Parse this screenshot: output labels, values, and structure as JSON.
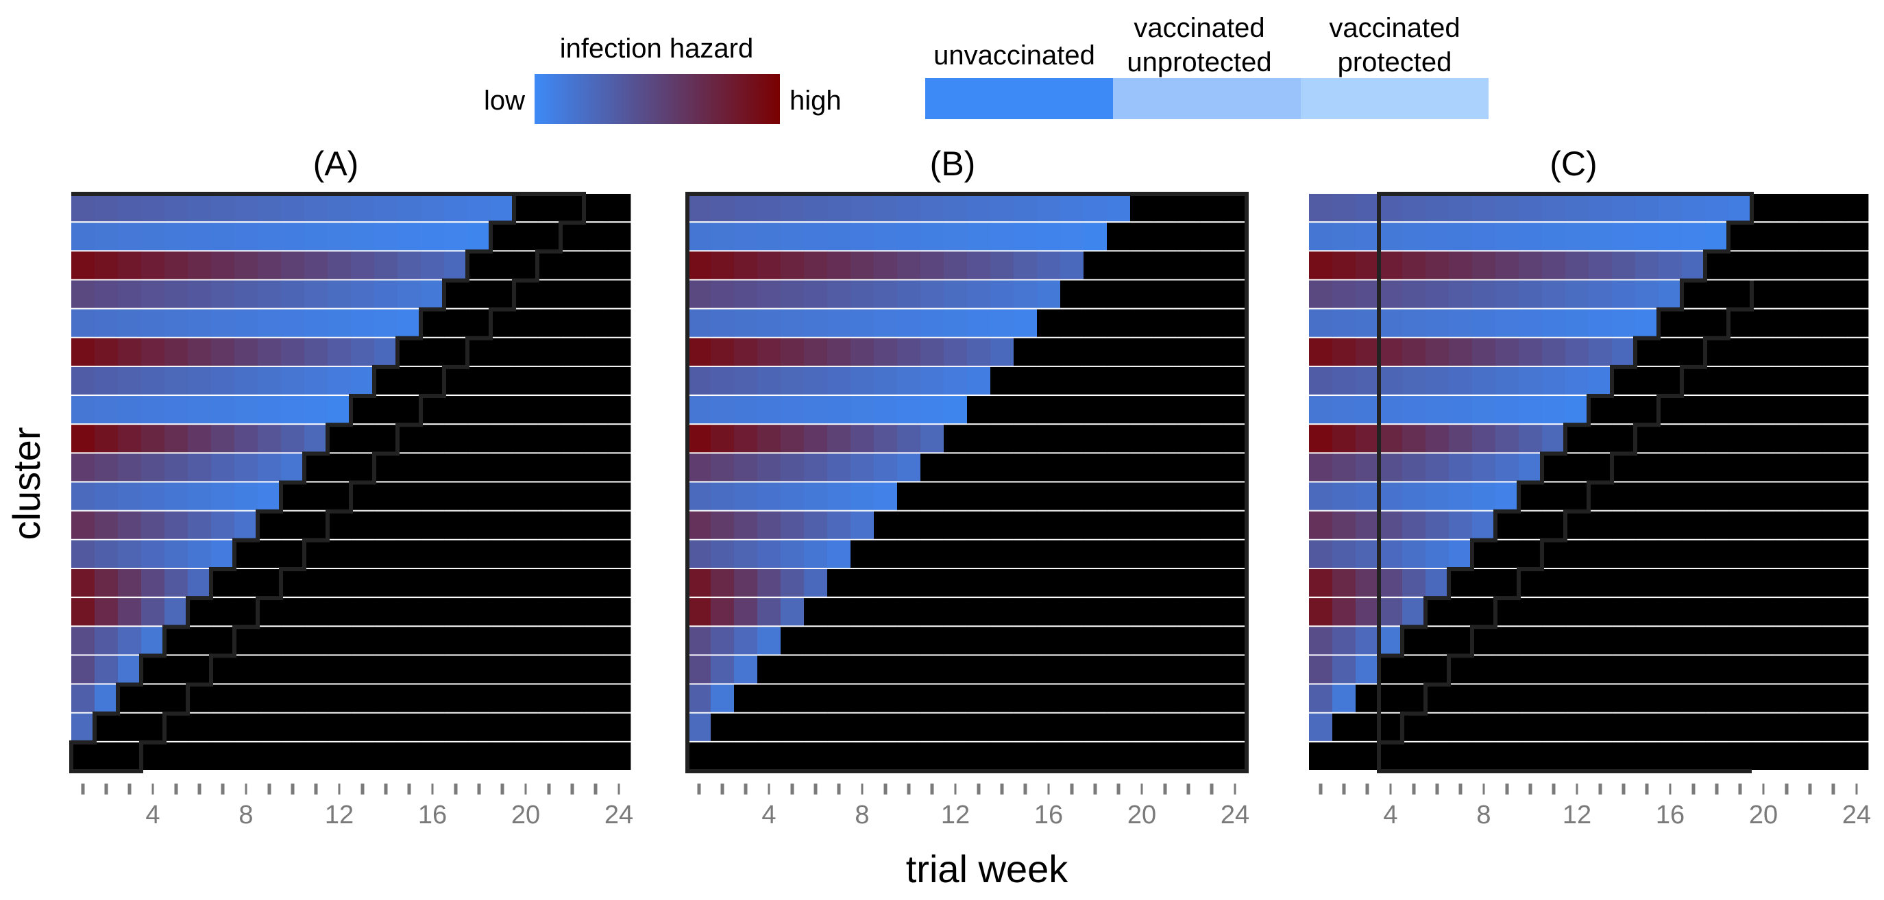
{
  "legend": {
    "hazard_title": "infection hazard",
    "hazard_low": "low",
    "hazard_high": "high",
    "status_labels": [
      [
        "unvaccinated"
      ],
      [
        "vaccinated",
        "unprotected"
      ],
      [
        "vaccinated",
        "protected"
      ]
    ]
  },
  "colors": {
    "low_hazard": "#3d8af7",
    "high_hazard": "#7a0000",
    "unvaccinated": "#3d8af7",
    "vaccinated_unprotected": "#99c3fa",
    "vaccinated_protected": "#abd2fd",
    "outline": "#222222",
    "tick": "#7a7a7a"
  },
  "chart_data": [
    {
      "type": "heatmap",
      "title": "(A)",
      "xlabel": "trial week",
      "ylabel": "cluster",
      "x_ticks": [
        4,
        8,
        12,
        16,
        20,
        24
      ],
      "weeks": 24,
      "clusters": 20,
      "vaccination_week": [
        20,
        19,
        18,
        17,
        16,
        15,
        14,
        13,
        12,
        11,
        10,
        9,
        8,
        7,
        6,
        5,
        4,
        3,
        2,
        1
      ],
      "hazard": [
        0.35,
        0.15,
        0.95,
        0.5,
        0.2,
        0.95,
        0.35,
        0.15,
        1.0,
        0.6,
        0.25,
        0.7,
        0.4,
        0.95,
        1.0,
        0.55,
        0.6,
        0.5,
        0.9,
        0.2
      ],
      "unprotected_weeks": 3,
      "outline": "vaccination-window"
    },
    {
      "type": "heatmap",
      "title": "(B)",
      "xlabel": "trial week",
      "ylabel": "cluster",
      "x_ticks": [
        4,
        8,
        12,
        16,
        20,
        24
      ],
      "weeks": 24,
      "clusters": 20,
      "vaccination_week": [
        20,
        19,
        18,
        17,
        16,
        15,
        14,
        13,
        12,
        11,
        10,
        9,
        8,
        7,
        6,
        5,
        4,
        3,
        2,
        1
      ],
      "hazard": [
        0.35,
        0.15,
        0.95,
        0.5,
        0.2,
        0.95,
        0.35,
        0.15,
        1.0,
        0.6,
        0.25,
        0.7,
        0.4,
        0.95,
        1.0,
        0.55,
        0.6,
        0.5,
        0.9,
        0.2
      ],
      "unprotected_weeks": 3,
      "outline": "full"
    },
    {
      "type": "heatmap",
      "title": "(C)",
      "xlabel": "trial week",
      "ylabel": "cluster",
      "x_ticks": [
        4,
        8,
        12,
        16,
        20,
        24
      ],
      "weeks": 24,
      "clusters": 20,
      "vaccination_week": [
        20,
        19,
        18,
        17,
        16,
        15,
        14,
        13,
        12,
        11,
        10,
        9,
        8,
        7,
        6,
        5,
        4,
        3,
        2,
        1
      ],
      "hazard": [
        0.35,
        0.15,
        0.95,
        0.5,
        0.2,
        0.95,
        0.35,
        0.15,
        1.0,
        0.6,
        0.25,
        0.7,
        0.4,
        0.95,
        1.0,
        0.55,
        0.6,
        0.5,
        0.9,
        0.2
      ],
      "unprotected_weeks": 3,
      "outline": "weeks-4-to-19"
    }
  ]
}
